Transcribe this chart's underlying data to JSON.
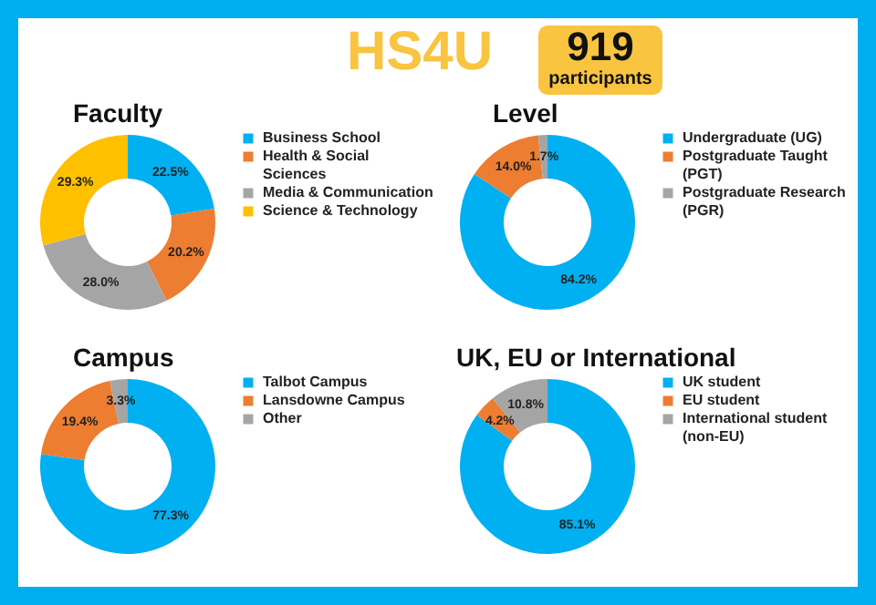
{
  "chart_data": [
    {
      "type": "other",
      "title": "HS4U",
      "annotations": [
        "919",
        "participants"
      ]
    },
    {
      "type": "donut",
      "title": "Faculty",
      "categories": [
        "Business School",
        "Health & Social Sciences",
        "Media & Communication",
        "Science & Technology"
      ],
      "values": [
        22.5,
        20.2,
        28.0,
        29.3
      ],
      "value_labels": [
        "22.5%",
        "20.2%",
        "28.0%",
        "29.3%"
      ],
      "colors": [
        "#00b0f0",
        "#ed7d31",
        "#a5a5a5",
        "#ffc000"
      ],
      "legend": "right"
    },
    {
      "type": "donut",
      "title": "Level",
      "categories": [
        "Undergraduate (UG)",
        "Postgraduate Taught (PGT)",
        "Postgraduate Research (PGR)"
      ],
      "values": [
        84.2,
        14.0,
        1.7
      ],
      "value_labels": [
        "84.2%",
        "14.0%",
        "1.7%"
      ],
      "colors": [
        "#00b0f0",
        "#ed7d31",
        "#a5a5a5"
      ],
      "legend": "right"
    },
    {
      "type": "donut",
      "title": "Campus",
      "categories": [
        "Talbot Campus",
        "Lansdowne Campus",
        "Other"
      ],
      "values": [
        77.3,
        19.4,
        3.3
      ],
      "value_labels": [
        "77.3%",
        "19.4%",
        "3.3%"
      ],
      "colors": [
        "#00b0f0",
        "#ed7d31",
        "#a5a5a5"
      ],
      "legend": "right"
    },
    {
      "type": "donut",
      "title": "UK, EU or International",
      "categories": [
        "UK student",
        "EU student",
        "International student (non-EU)"
      ],
      "values": [
        85.1,
        4.2,
        10.8
      ],
      "value_labels": [
        "85.1%",
        "4.2%",
        "10.8%"
      ],
      "colors": [
        "#00b0f0",
        "#ed7d31",
        "#a5a5a5"
      ],
      "legend": "right"
    }
  ]
}
